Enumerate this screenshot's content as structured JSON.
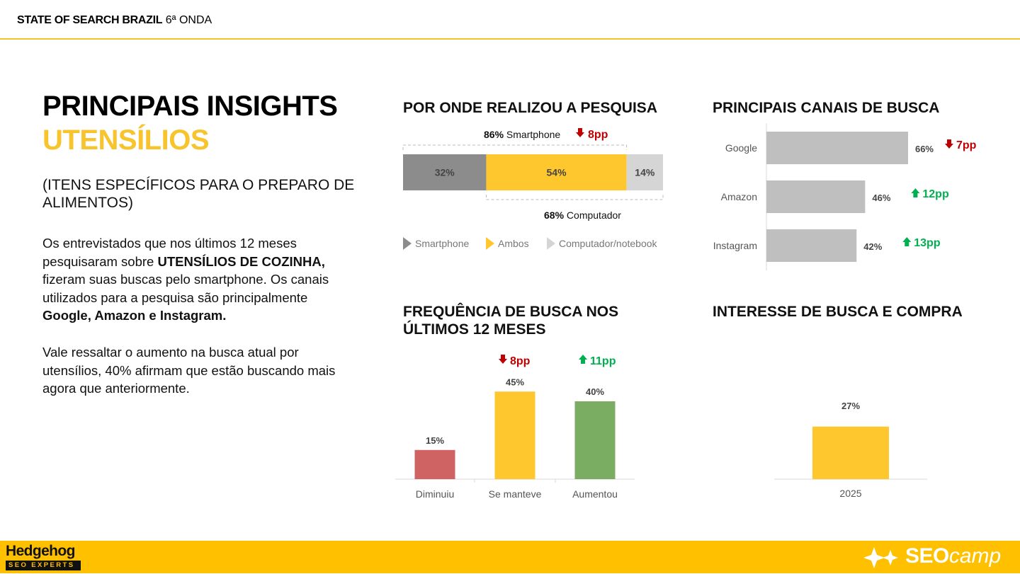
{
  "header": {
    "title_bold": "STATE OF SEARCH BRAZIL",
    "title_rest": " 6ª ONDA"
  },
  "main": {
    "title": "PRINCIPAIS INSIGHTS",
    "subtitle": "UTENSÍLIOS",
    "description": "(ITENS ESPECÍFICOS PARA O PREPARO DE ALIMENTOS)",
    "p1": [
      {
        "text": "Os entrevistados que nos últimos 12 meses pesquisaram sobre ",
        "bold": false
      },
      {
        "text": "UTENSÍLIOS DE COZINHA,",
        "bold": true
      },
      {
        "text": " fizeram suas buscas pelo smartphone. Os canais utilizados para a pesquisa são principalmente ",
        "bold": false
      },
      {
        "text": "Google, Amazon e Instagram.",
        "bold": true
      }
    ],
    "p2": "Vale ressaltar o aumento na busca atual por utensílios, 40% afirmam que estão buscando mais agora que anteriormente."
  },
  "colors": {
    "yellow": "#FEC72E",
    "dark_gray": "#8C8C8C",
    "light_gray": "#D5D5D5",
    "bar_gray": "#BFBFBF",
    "red": "#C00000",
    "green": "#00B050",
    "red_bar": "#CF6262",
    "green_bar": "#7AAD62",
    "accent_title": "#F8C42D",
    "footer": "#FFC000"
  },
  "sections": {
    "device": "POR ONDE REALIZOU A PESQUISA",
    "channels": "PRINCIPAIS CANAIS DE BUSCA",
    "frequency": "FREQUÊNCIA DE BUSCA NOS ÚLTIMOS 12 MESES",
    "interest": "INTERESSE DE BUSCA E COMPRA"
  },
  "chart_data": [
    {
      "type": "bar",
      "orientation": "horizontal-stacked",
      "title": "POR ONDE REALIZOU A PESQUISA",
      "series": [
        {
          "name": "Smartphone",
          "value": 32,
          "label": "32%"
        },
        {
          "name": "Ambos",
          "value": 54,
          "label": "54%"
        },
        {
          "name": "Computador/notebook",
          "value": 14,
          "label": "14%"
        }
      ],
      "annotations": [
        {
          "pct": "86%",
          "text": " Smartphone",
          "change": "8pp",
          "direction": "down"
        },
        {
          "pct": "68%",
          "text": " Computador"
        }
      ],
      "legend": [
        "Smartphone",
        "Ambos",
        "Computador/notebook"
      ]
    },
    {
      "type": "bar",
      "orientation": "horizontal",
      "title": "PRINCIPAIS CANAIS DE BUSCA",
      "categories": [
        "Google",
        "Amazon",
        "Instagram"
      ],
      "values": [
        66,
        46,
        42
      ],
      "labels": [
        "66%",
        "46%",
        "42%"
      ],
      "changes": [
        {
          "text": "7pp",
          "direction": "down"
        },
        {
          "text": "12pp",
          "direction": "up"
        },
        {
          "text": "13pp",
          "direction": "up"
        }
      ],
      "xlim": [
        0,
        100
      ]
    },
    {
      "type": "bar",
      "title": "FREQUÊNCIA DE BUSCA NOS ÚLTIMOS 12 MESES",
      "categories": [
        "Diminuiu",
        "Se manteve",
        "Aumentou"
      ],
      "values": [
        15,
        45,
        40
      ],
      "labels": [
        "15%",
        "45%",
        "40%"
      ],
      "changes": [
        null,
        {
          "text": "8pp",
          "direction": "down"
        },
        {
          "text": "11pp",
          "direction": "up"
        }
      ],
      "ylim": [
        0,
        50
      ]
    },
    {
      "type": "bar",
      "title": "INTERESSE DE BUSCA E COMPRA",
      "categories": [
        "2025"
      ],
      "values": [
        27
      ],
      "labels": [
        "27%"
      ],
      "ylim": [
        0,
        50
      ]
    }
  ],
  "footer": {
    "left_logo": {
      "name": "Hedgehog",
      "sub": "SEO EXPERTS"
    },
    "right_logo": {
      "bold": "SEO",
      "italic": "camp"
    }
  }
}
